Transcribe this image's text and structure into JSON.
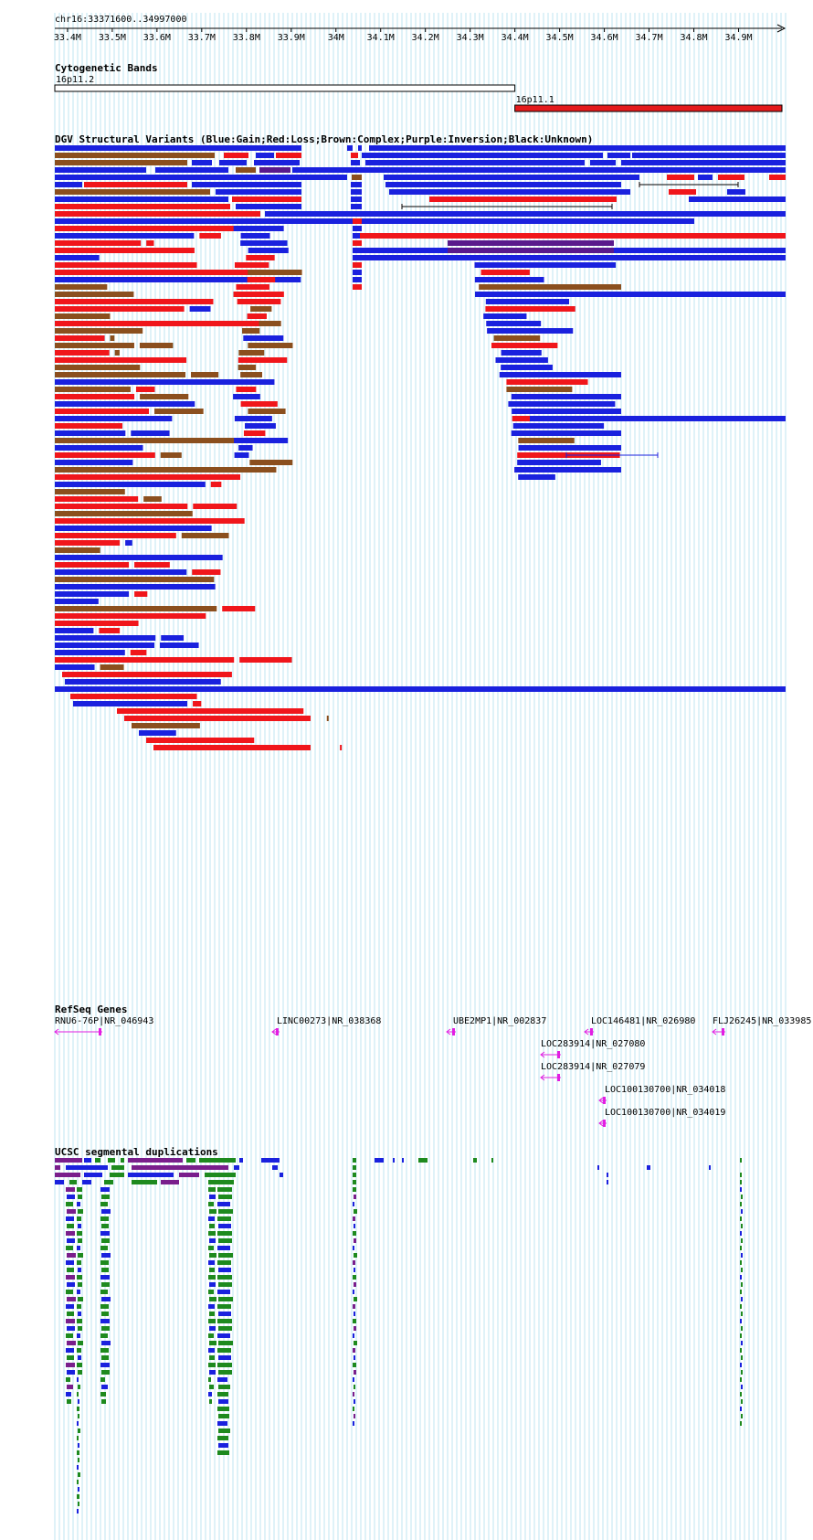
{
  "locus": "chr16:33371600..34997000",
  "ruler": {
    "start": 33371600,
    "end": 34997000,
    "ticks": [
      "33.4M",
      "33.5M",
      "33.6M",
      "33.7M",
      "33.8M",
      "33.9M",
      "34M",
      "34.1M",
      "34.2M",
      "34.3M",
      "34.4M",
      "34.5M",
      "34.6M",
      "34.7M",
      "34.8M",
      "34.9M"
    ]
  },
  "tracks": {
    "cyto": {
      "title": "Cytogenetic Bands",
      "bands": [
        {
          "label": "16p11.2",
          "start": 33371600,
          "end": 34400000,
          "color": "#ffffff"
        },
        {
          "label": "16p11.1",
          "start": 34400000,
          "end": 34997000,
          "color": "#e41a1c"
        }
      ]
    },
    "dgv": {
      "title": "DGV Structural Variants (Blue:Gain;Red:Loss;Brown:Complex;Purple:Inversion;Black:Unknown)",
      "colors": {
        "gain": "#1a21de",
        "loss": "#f0161b",
        "complex": "#8b4f1e",
        "inversion": "#5a1a8c",
        "unknown": "#000000"
      }
    },
    "refseq": {
      "title": "RefSeq Genes",
      "color": "#e21ee2",
      "genes": [
        {
          "label": "RNU6-76P|NR_046943"
        },
        {
          "label": "LINC00273|NR_038368"
        },
        {
          "label": "UBE2MP1|NR_002837"
        },
        {
          "label": "LOC146481|NR_026980"
        },
        {
          "label": "FLJ26245|NR_033985"
        },
        {
          "label": "LOC283914|NR_027080"
        },
        {
          "label": "LOC283914|NR_027079"
        },
        {
          "label": "LOC100130700|NR_034018"
        },
        {
          "label": "LOC100130700|NR_034019"
        }
      ]
    },
    "segdup": {
      "title": "UCSC segmental duplications",
      "colors": [
        "#7a1e8c",
        "#1a21de",
        "#1e8a1e"
      ]
    }
  }
}
